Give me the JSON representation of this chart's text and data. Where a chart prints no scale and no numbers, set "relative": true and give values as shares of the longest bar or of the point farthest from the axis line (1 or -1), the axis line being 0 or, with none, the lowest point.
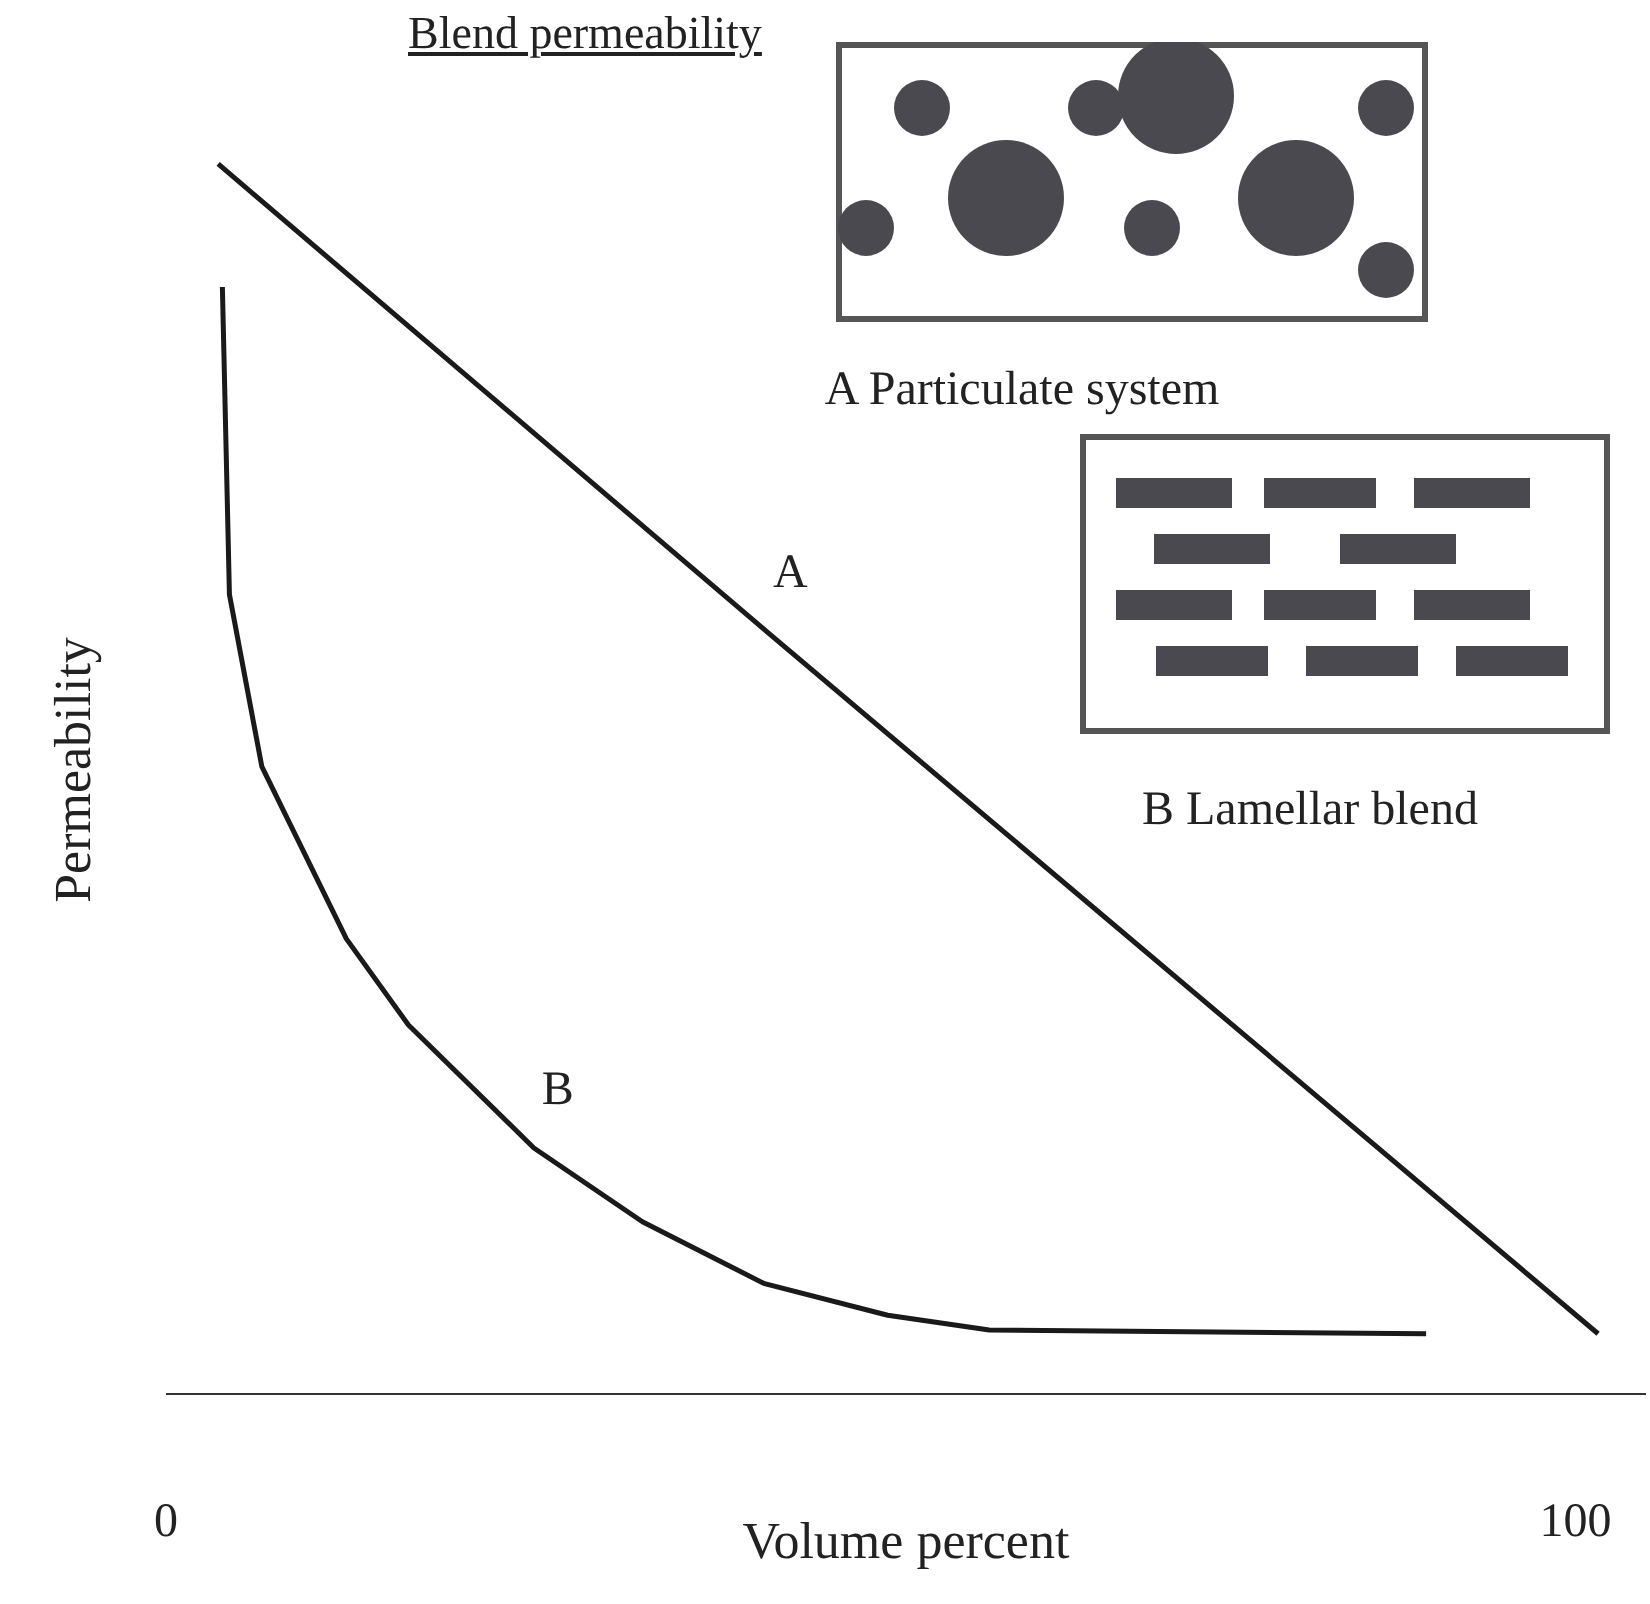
{
  "chart_data": {
    "type": "line",
    "title": "Blend permeability",
    "xlabel": "Volume percent",
    "ylabel": "Permeability",
    "relative": true,
    "xlim": [
      0,
      105
    ],
    "xticks": [
      0,
      100
    ],
    "legend": false,
    "grid": false,
    "marker": "none",
    "line_style": "solid",
    "annotations": [
      "A Particulate system",
      "B Lamellar blend"
    ],
    "series": [
      {
        "name": "A",
        "color": "#1a1a1a",
        "x": [
          3.7,
          42.6,
          101.6
        ],
        "values": [
          1,
          0.62,
          0.049
        ]
      },
      {
        "name": "B",
        "color": "#1a1a1a",
        "x": [
          4.0,
          4.5,
          6.8,
          12.8,
          17.2,
          26.1,
          33.8,
          42.4,
          51.2,
          58.4,
          89.4
        ],
        "values": [
          0.9,
          0.65,
          0.51,
          0.37,
          0.3,
          0.2,
          0.14,
          0.09,
          0.064,
          0.052,
          0.049
        ]
      }
    ]
  }
}
